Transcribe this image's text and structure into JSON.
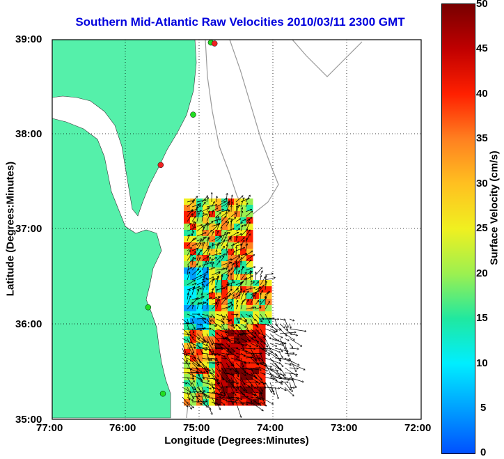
{
  "title": "Southern Mid-Atlantic Raw Velocities 2010/03/11 2300 GMT",
  "x_axis": {
    "label": "Longitude (Degrees:Minutes)",
    "ticks": [
      "77:00",
      "76:00",
      "75:00",
      "74:00",
      "73:00",
      "72:00"
    ]
  },
  "y_axis": {
    "label": "Latitude (Degrees:Minutes)",
    "ticks": [
      "39:00",
      "38:00",
      "37:00",
      "36:00",
      "35:00"
    ]
  },
  "colorbar": {
    "label": "Surface Velocity (cm/s)",
    "ticks": [
      "50",
      "45",
      "40",
      "35",
      "30",
      "25",
      "20",
      "15",
      "10",
      "5",
      "0"
    ],
    "range": [
      0,
      50
    ]
  },
  "map": {
    "lon_range": [
      -77,
      -72
    ],
    "lat_range": [
      35,
      39
    ],
    "grid": true,
    "land_color": "#55f0aa",
    "water_color": "#ffffff",
    "bathymetry_color": "#999999",
    "vector_color": "#000000"
  },
  "stations": [
    {
      "name": "green-site",
      "color": "#22dd22",
      "lon": -74.85,
      "lat": 38.97
    },
    {
      "name": "red-site",
      "color": "#ee2222",
      "lon": -74.8,
      "lat": 38.96
    },
    {
      "name": "green-site",
      "color": "#22dd22",
      "lon": -75.09,
      "lat": 38.21
    },
    {
      "name": "red-site",
      "color": "#ee2222",
      "lon": -75.53,
      "lat": 37.68
    },
    {
      "name": "green-site",
      "color": "#22dd22",
      "lon": -75.7,
      "lat": 36.18
    },
    {
      "name": "green-site",
      "color": "#22dd22",
      "lon": -75.5,
      "lat": 35.27
    }
  ]
}
